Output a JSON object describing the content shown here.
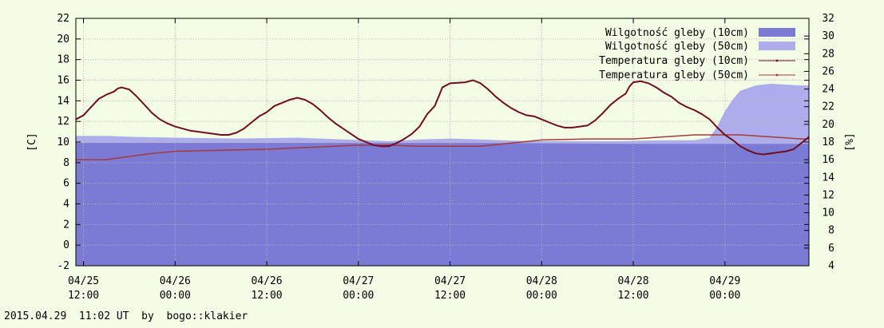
{
  "footer": "2015.04.29  11:02 UT  by  bogo::klakier",
  "colors": {
    "background": "#f3fde6",
    "moisture10": "#7b7bd6",
    "moisture50": "#adadeb",
    "temp10": "#6e0e1e",
    "temp50": "#a53a3a",
    "grid": "#b8b8b8"
  },
  "chart_data": {
    "type": "area",
    "ylabel": "[C]",
    "y2label": "[%]",
    "ylim": [
      -2,
      22
    ],
    "y2lim": [
      4,
      32
    ],
    "yticks": [
      "-2",
      "0",
      "2",
      "4",
      "6",
      "8",
      "10",
      "12",
      "14",
      "16",
      "18",
      "20",
      "22"
    ],
    "y2ticks": [
      "4",
      "6",
      "8",
      "10",
      "12",
      "14",
      "16",
      "18",
      "20",
      "22",
      "24",
      "26",
      "28",
      "30",
      "32"
    ],
    "xticks": [
      {
        "line1": "04/25",
        "line2": "12:00",
        "t": 0
      },
      {
        "line1": "04/26",
        "line2": "00:00",
        "t": 12
      },
      {
        "line1": "04/26",
        "line2": "12:00",
        "t": 24
      },
      {
        "line1": "04/27",
        "line2": "00:00",
        "t": 36
      },
      {
        "line1": "04/27",
        "line2": "12:00",
        "t": 48
      },
      {
        "line1": "04/28",
        "line2": "00:00",
        "t": 60
      },
      {
        "line1": "04/28",
        "line2": "12:00",
        "t": 72
      },
      {
        "line1": "04/29",
        "line2": "00:00",
        "t": 84
      }
    ],
    "xlim": [
      -1,
      95
    ],
    "grid": true,
    "legend_position": "top-right",
    "series": [
      {
        "name": "Wilgotność gleby (10cm)",
        "axis": "y2",
        "kind": "area",
        "points": [
          [
            -1,
            17.9
          ],
          [
            10,
            17.9
          ],
          [
            30,
            17.9
          ],
          [
            50,
            17.9
          ],
          [
            70,
            17.8
          ],
          [
            84,
            17.8
          ],
          [
            95,
            17.8
          ]
        ]
      },
      {
        "name": "Wilgotność gleby (50cm)",
        "axis": "y2",
        "kind": "area",
        "points": [
          [
            -1,
            18.7
          ],
          [
            3,
            18.7
          ],
          [
            6,
            18.6
          ],
          [
            12,
            18.5
          ],
          [
            20,
            18.4
          ],
          [
            28,
            18.5
          ],
          [
            34,
            18.3
          ],
          [
            40,
            18.1
          ],
          [
            44,
            18.3
          ],
          [
            48,
            18.4
          ],
          [
            52,
            18.3
          ],
          [
            58,
            18.1
          ],
          [
            64,
            18.1
          ],
          [
            70,
            18.1
          ],
          [
            76,
            18.2
          ],
          [
            80,
            18.2
          ],
          [
            82,
            18.5
          ],
          [
            83,
            19.8
          ],
          [
            84,
            21.5
          ],
          [
            85,
            22.8
          ],
          [
            86,
            23.8
          ],
          [
            88,
            24.4
          ],
          [
            90,
            24.6
          ],
          [
            92,
            24.5
          ],
          [
            94,
            24.4
          ],
          [
            95,
            24.4
          ]
        ]
      },
      {
        "name": "Temperatura gleby (10cm)",
        "axis": "y",
        "kind": "line",
        "points": [
          [
            -1,
            12.2
          ],
          [
            0,
            12.6
          ],
          [
            1,
            13.4
          ],
          [
            2,
            14.2
          ],
          [
            3,
            14.6
          ],
          [
            4,
            14.9
          ],
          [
            4.5,
            15.2
          ],
          [
            5,
            15.3
          ],
          [
            6,
            15.1
          ],
          [
            7,
            14.4
          ],
          [
            8,
            13.6
          ],
          [
            9,
            12.8
          ],
          [
            10,
            12.2
          ],
          [
            11,
            11.8
          ],
          [
            12,
            11.5
          ],
          [
            14,
            11.1
          ],
          [
            16,
            10.9
          ],
          [
            18,
            10.7
          ],
          [
            19,
            10.7
          ],
          [
            20,
            10.9
          ],
          [
            21,
            11.3
          ],
          [
            22,
            11.9
          ],
          [
            23,
            12.5
          ],
          [
            24,
            12.9
          ],
          [
            25,
            13.5
          ],
          [
            26,
            13.8
          ],
          [
            27,
            14.1
          ],
          [
            28,
            14.3
          ],
          [
            29,
            14.1
          ],
          [
            30,
            13.7
          ],
          [
            31,
            13.1
          ],
          [
            32,
            12.4
          ],
          [
            33,
            11.8
          ],
          [
            34,
            11.3
          ],
          [
            35,
            10.8
          ],
          [
            36,
            10.3
          ],
          [
            37,
            10.0
          ],
          [
            38,
            9.7
          ],
          [
            39,
            9.6
          ],
          [
            40,
            9.6
          ],
          [
            41,
            9.9
          ],
          [
            42,
            10.3
          ],
          [
            43,
            10.8
          ],
          [
            44,
            11.5
          ],
          [
            45,
            12.7
          ],
          [
            46,
            13.5
          ],
          [
            46.5,
            14.4
          ],
          [
            47,
            15.3
          ],
          [
            48,
            15.7
          ],
          [
            50,
            15.8
          ],
          [
            51,
            16.0
          ],
          [
            52,
            15.7
          ],
          [
            53,
            15.1
          ],
          [
            54,
            14.4
          ],
          [
            55,
            13.8
          ],
          [
            56,
            13.3
          ],
          [
            57,
            12.9
          ],
          [
            58,
            12.6
          ],
          [
            59,
            12.5
          ],
          [
            60,
            12.2
          ],
          [
            61,
            11.9
          ],
          [
            62,
            11.6
          ],
          [
            63,
            11.4
          ],
          [
            64,
            11.4
          ],
          [
            65,
            11.5
          ],
          [
            66,
            11.6
          ],
          [
            67,
            12.1
          ],
          [
            68,
            12.8
          ],
          [
            69,
            13.6
          ],
          [
            70,
            14.2
          ],
          [
            71,
            14.7
          ],
          [
            71.5,
            15.4
          ],
          [
            72,
            15.8
          ],
          [
            73,
            15.9
          ],
          [
            74,
            15.7
          ],
          [
            75,
            15.3
          ],
          [
            76,
            14.8
          ],
          [
            77,
            14.4
          ],
          [
            78,
            13.8
          ],
          [
            79,
            13.4
          ],
          [
            80,
            13.1
          ],
          [
            81,
            12.7
          ],
          [
            82,
            12.2
          ],
          [
            83,
            11.4
          ],
          [
            84,
            10.7
          ],
          [
            85,
            10.2
          ],
          [
            86,
            9.6
          ],
          [
            87,
            9.2
          ],
          [
            88,
            8.9
          ],
          [
            89,
            8.8
          ],
          [
            90,
            8.9
          ],
          [
            91,
            9.0
          ],
          [
            92,
            9.1
          ],
          [
            93,
            9.3
          ],
          [
            94,
            9.9
          ],
          [
            95,
            10.5
          ]
        ]
      },
      {
        "name": "Temperatura gleby (50cm)",
        "axis": "y",
        "kind": "line",
        "points": [
          [
            -1,
            8.3
          ],
          [
            3,
            8.3
          ],
          [
            6,
            8.6
          ],
          [
            9,
            8.9
          ],
          [
            12,
            9.1
          ],
          [
            18,
            9.2
          ],
          [
            24,
            9.3
          ],
          [
            30,
            9.5
          ],
          [
            36,
            9.7
          ],
          [
            40,
            9.7
          ],
          [
            44,
            9.6
          ],
          [
            48,
            9.6
          ],
          [
            52,
            9.6
          ],
          [
            56,
            9.9
          ],
          [
            60,
            10.2
          ],
          [
            66,
            10.3
          ],
          [
            72,
            10.3
          ],
          [
            76,
            10.5
          ],
          [
            80,
            10.7
          ],
          [
            84,
            10.7
          ],
          [
            86,
            10.7
          ],
          [
            88,
            10.6
          ],
          [
            90,
            10.5
          ],
          [
            92,
            10.4
          ],
          [
            94,
            10.3
          ],
          [
            95,
            10.3
          ]
        ]
      }
    ]
  }
}
